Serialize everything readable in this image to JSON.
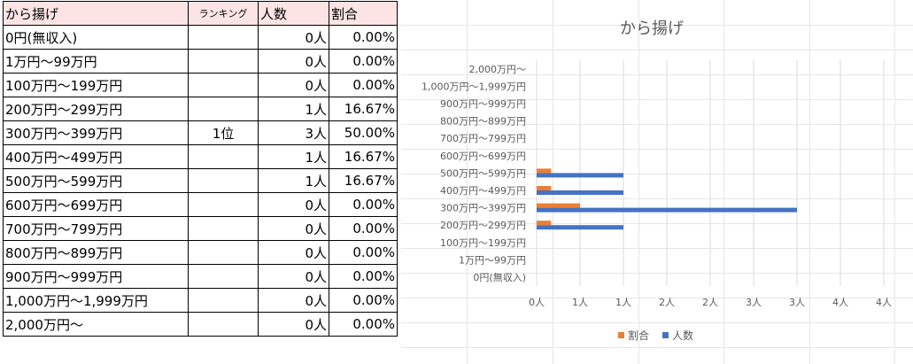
{
  "table": {
    "headers": [
      "から揚げ",
      "ランキング",
      "人数",
      "割合"
    ],
    "rows": [
      {
        "label": "0円(無収入)",
        "rank": "",
        "count": "0人",
        "ratio": "0.00%"
      },
      {
        "label": "1万円～99万円",
        "rank": "",
        "count": "0人",
        "ratio": "0.00%"
      },
      {
        "label": "100万円～199万円",
        "rank": "",
        "count": "0人",
        "ratio": "0.00%"
      },
      {
        "label": "200万円～299万円",
        "rank": "",
        "count": "1人",
        "ratio": "16.67%"
      },
      {
        "label": "300万円～399万円",
        "rank": "1位",
        "count": "3人",
        "ratio": "50.00%"
      },
      {
        "label": "400万円～499万円",
        "rank": "",
        "count": "1人",
        "ratio": "16.67%"
      },
      {
        "label": "500万円～599万円",
        "rank": "",
        "count": "1人",
        "ratio": "16.67%"
      },
      {
        "label": "600万円～699万円",
        "rank": "",
        "count": "0人",
        "ratio": "0.00%"
      },
      {
        "label": "700万円～799万円",
        "rank": "",
        "count": "0人",
        "ratio": "0.00%"
      },
      {
        "label": "800万円～899万円",
        "rank": "",
        "count": "0人",
        "ratio": "0.00%"
      },
      {
        "label": "900万円～999万円",
        "rank": "",
        "count": "0人",
        "ratio": "0.00%"
      },
      {
        "label": "1,000万円～1,999万円",
        "rank": "",
        "count": "0人",
        "ratio": "0.00%"
      },
      {
        "label": "2,000万円～",
        "rank": "",
        "count": "0人",
        "ratio": "0.00%"
      }
    ]
  },
  "chart_data": {
    "type": "bar",
    "orientation": "horizontal",
    "title": "から揚げ",
    "categories": [
      "0円(無収入)",
      "1万円～99万円",
      "100万円～199万円",
      "200万円～299万円",
      "300万円～399万円",
      "400万円～499万円",
      "500万円～599万円",
      "600万円～699万円",
      "700万円～799万円",
      "800万円～899万円",
      "900万円～999万円",
      "1,000万円～1,999万円",
      "2,000万円～"
    ],
    "series": [
      {
        "name": "人数",
        "values": [
          0,
          0,
          0,
          1,
          3,
          1,
          1,
          0,
          0,
          0,
          0,
          0,
          0
        ],
        "color": "#4472c4"
      },
      {
        "name": "割合",
        "values": [
          0,
          0,
          0,
          0.1667,
          0.5,
          0.1667,
          0.1667,
          0,
          0,
          0,
          0,
          0,
          0
        ],
        "color": "#ed7d31"
      }
    ],
    "xlim": [
      0,
      4
    ],
    "x_tick_values": [
      0,
      0.5,
      1,
      1.5,
      2,
      2.5,
      3,
      3.5,
      4
    ],
    "x_tick_labels": [
      "0人",
      "1人",
      "1人",
      "2人",
      "2人",
      "3人",
      "3人",
      "4人",
      "4人"
    ],
    "grid": true,
    "legend_position": "bottom",
    "legend": [
      "割合",
      "人数"
    ]
  }
}
